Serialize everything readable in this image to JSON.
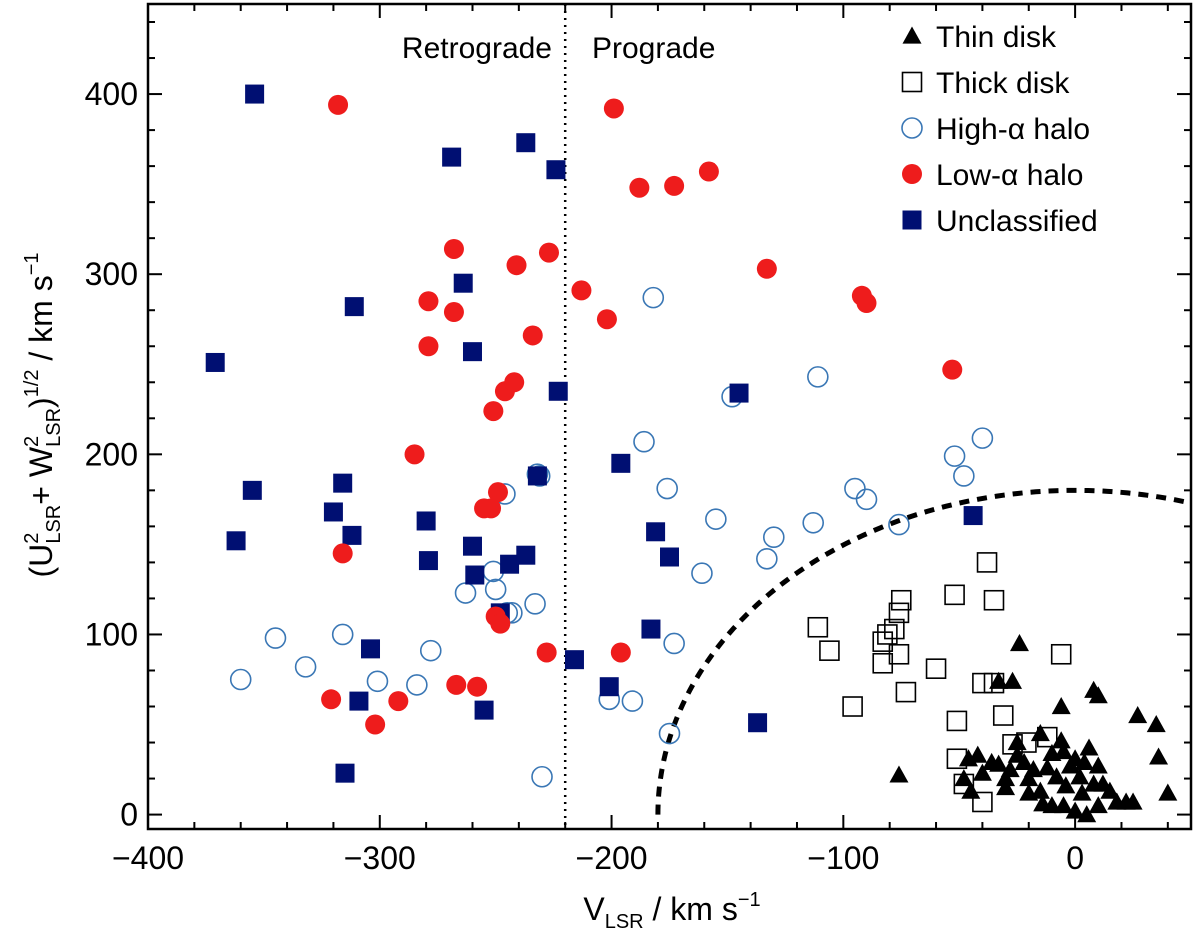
{
  "chart_data": {
    "type": "scatter",
    "xlabel": "V",
    "xlabel_sub": "LSR",
    "xlabel_units": " / km s",
    "xlabel_units_exp": "−1",
    "ylabel_open": "(U",
    "ylabel_u_sup": "2",
    "ylabel_u_sub": "LSR",
    "ylabel_plus": "+ W",
    "ylabel_w_sup": "2",
    "ylabel_w_sub": "LSR",
    "ylabel_close": ")",
    "ylabel_exp": "1/2",
    "ylabel_units": " / km s",
    "ylabel_units_exp": "−1",
    "xlim": [
      -400,
      50
    ],
    "ylim": [
      -8,
      450
    ],
    "xticks": [
      -400,
      -300,
      -200,
      -100,
      0
    ],
    "xtick_labels": [
      "−400",
      "−300",
      "−200",
      "−100",
      "0"
    ],
    "yticks": [
      0,
      100,
      200,
      300,
      400
    ],
    "ytick_labels": [
      "0",
      "100",
      "200",
      "300",
      "400"
    ],
    "divider_x": -220,
    "region_labels": {
      "left": "Retrograde",
      "right": "Prograde"
    },
    "toomre_boundary_radius": 180,
    "legend_position": "top-right",
    "series": [
      {
        "name": "Thin disk",
        "marker": "filled-triangle",
        "color": "#000000",
        "points": [
          [
            -76,
            22
          ],
          [
            -33,
            74
          ],
          [
            -27,
            74
          ],
          [
            -42,
            33
          ],
          [
            -46,
            31
          ],
          [
            -48,
            20
          ],
          [
            -45,
            13
          ],
          [
            -40,
            23
          ],
          [
            -36,
            29
          ],
          [
            -33,
            28
          ],
          [
            -30,
            20
          ],
          [
            -28,
            25
          ],
          [
            -25,
            33
          ],
          [
            -22,
            29
          ],
          [
            -20,
            20
          ],
          [
            -18,
            25
          ],
          [
            -15,
            13
          ],
          [
            -12,
            26
          ],
          [
            -10,
            34
          ],
          [
            -8,
            21
          ],
          [
            -6,
            41
          ],
          [
            -4,
            16
          ],
          [
            -2,
            27
          ],
          [
            0,
            31
          ],
          [
            2,
            21
          ],
          [
            3,
            12
          ],
          [
            4,
            29
          ],
          [
            6,
            37
          ],
          [
            8,
            17
          ],
          [
            10,
            27
          ],
          [
            12,
            17
          ],
          [
            15,
            13
          ],
          [
            18,
            7
          ],
          [
            22,
            7
          ],
          [
            25,
            7
          ],
          [
            -24,
            95
          ],
          [
            -6,
            60
          ],
          [
            8,
            69
          ],
          [
            10,
            66
          ],
          [
            27,
            55
          ],
          [
            35,
            50
          ],
          [
            36,
            32
          ],
          [
            40,
            12
          ],
          [
            -14,
            6
          ],
          [
            -10,
            5
          ],
          [
            -5,
            5
          ],
          [
            0,
            2
          ],
          [
            5,
            0
          ],
          [
            10,
            5
          ],
          [
            -20,
            12
          ],
          [
            -30,
            15
          ],
          [
            -25,
            40
          ],
          [
            -15,
            45
          ],
          [
            -5,
            35
          ]
        ]
      },
      {
        "name": "Thick disk",
        "marker": "open-square",
        "color": "#000000",
        "points": [
          [
            -111,
            104
          ],
          [
            -106,
            91
          ],
          [
            -96,
            60
          ],
          [
            -83,
            96
          ],
          [
            -83,
            84
          ],
          [
            -81,
            100
          ],
          [
            -78,
            103
          ],
          [
            -76,
            112
          ],
          [
            -75,
            119
          ],
          [
            -76,
            89
          ],
          [
            -73,
            68
          ],
          [
            -60,
            81
          ],
          [
            -52,
            122
          ],
          [
            -51,
            52
          ],
          [
            -51,
            31
          ],
          [
            -48,
            17
          ],
          [
            -38,
            140
          ],
          [
            -35,
            119
          ],
          [
            -40,
            73
          ],
          [
            -35,
            73
          ],
          [
            -31,
            55
          ],
          [
            -27,
            39
          ],
          [
            -21,
            40
          ],
          [
            -12,
            43
          ],
          [
            -6,
            89
          ],
          [
            -40,
            7
          ]
        ]
      },
      {
        "name": "High-α halo",
        "marker": "open-circle",
        "color": "#3a77b5",
        "points": [
          [
            -360,
            75
          ],
          [
            -345,
            98
          ],
          [
            -332,
            82
          ],
          [
            -316,
            100
          ],
          [
            -301,
            74
          ],
          [
            -284,
            72
          ],
          [
            -278,
            91
          ],
          [
            -263,
            123
          ],
          [
            -251,
            135
          ],
          [
            -250,
            125
          ],
          [
            -246,
            178
          ],
          [
            -245,
            112
          ],
          [
            -243,
            112
          ],
          [
            -233,
            117
          ],
          [
            -232,
            189
          ],
          [
            -231,
            188
          ],
          [
            -230,
            21
          ],
          [
            -201,
            64
          ],
          [
            -191,
            63
          ],
          [
            -186,
            207
          ],
          [
            -182,
            287
          ],
          [
            -176,
            181
          ],
          [
            -175,
            45
          ],
          [
            -173,
            95
          ],
          [
            -161,
            134
          ],
          [
            -155,
            164
          ],
          [
            -148,
            232
          ],
          [
            -133,
            142
          ],
          [
            -130,
            154
          ],
          [
            -113,
            162
          ],
          [
            -111,
            243
          ],
          [
            -95,
            181
          ],
          [
            -90,
            175
          ],
          [
            -76,
            161
          ],
          [
            -52,
            199
          ],
          [
            -48,
            188
          ],
          [
            -40,
            209
          ]
        ]
      },
      {
        "name": "Low-α halo",
        "marker": "filled-circle",
        "color": "#ee1c1c",
        "points": [
          [
            -318,
            394
          ],
          [
            -321,
            64
          ],
          [
            -316,
            145
          ],
          [
            -302,
            50
          ],
          [
            -292,
            63
          ],
          [
            -285,
            200
          ],
          [
            -279,
            260
          ],
          [
            -279,
            285
          ],
          [
            -268,
            314
          ],
          [
            -268,
            279
          ],
          [
            -267,
            72
          ],
          [
            -258,
            71
          ],
          [
            -255,
            170
          ],
          [
            -252,
            170
          ],
          [
            -251,
            224
          ],
          [
            -250,
            110
          ],
          [
            -249,
            179
          ],
          [
            -248,
            106
          ],
          [
            -246,
            235
          ],
          [
            -242,
            240
          ],
          [
            -241,
            305
          ],
          [
            -234,
            266
          ],
          [
            -228,
            90
          ],
          [
            -227,
            312
          ],
          [
            -213,
            291
          ],
          [
            -202,
            275
          ],
          [
            -199,
            392
          ],
          [
            -196,
            90
          ],
          [
            -188,
            348
          ],
          [
            -173,
            349
          ],
          [
            -158,
            357
          ],
          [
            -133,
            303
          ],
          [
            -92,
            288
          ],
          [
            -90,
            284
          ],
          [
            -53,
            247
          ]
        ]
      },
      {
        "name": "Unclassified",
        "marker": "filled-square",
        "color": "#000f72",
        "points": [
          [
            -371,
            251
          ],
          [
            -362,
            152
          ],
          [
            -355,
            180
          ],
          [
            -354,
            400
          ],
          [
            -320,
            168
          ],
          [
            -316,
            184
          ],
          [
            -315,
            23
          ],
          [
            -312,
            155
          ],
          [
            -311,
            282
          ],
          [
            -309,
            63
          ],
          [
            -304,
            92
          ],
          [
            -280,
            163
          ],
          [
            -279,
            141
          ],
          [
            -269,
            365
          ],
          [
            -264,
            295
          ],
          [
            -260,
            257
          ],
          [
            -260,
            149
          ],
          [
            -259,
            133
          ],
          [
            -255,
            58
          ],
          [
            -248,
            112
          ],
          [
            -244,
            139
          ],
          [
            -237,
            144
          ],
          [
            -237,
            373
          ],
          [
            -232,
            188
          ],
          [
            -224,
            358
          ],
          [
            -223,
            235
          ],
          [
            -216,
            86
          ],
          [
            -201,
            71
          ],
          [
            -196,
            195
          ],
          [
            -183,
            103
          ],
          [
            -181,
            157
          ],
          [
            -175,
            143
          ],
          [
            -145,
            234
          ],
          [
            -137,
            51
          ],
          [
            -44,
            166
          ]
        ]
      }
    ]
  }
}
